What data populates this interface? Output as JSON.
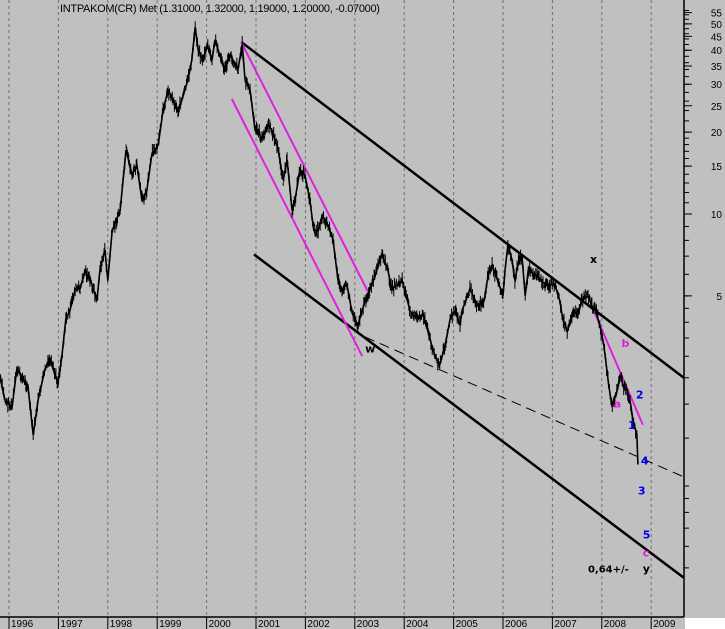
{
  "chart_data": {
    "type": "line",
    "title": "INTPAKOM(CR) Met (1.31000, 1.32000, 1.19000, 1.20000, -0.07000)",
    "y_scale": "log",
    "ylim": [
      0.4,
      58
    ],
    "xlim": [
      1995.82,
      2009.66
    ],
    "y_ticks": [
      5,
      10,
      15,
      20,
      25,
      30,
      35,
      40,
      45,
      50,
      55
    ],
    "x_ticks": [
      "1996",
      "1997",
      "1998",
      "1999",
      "2000",
      "2001",
      "2002",
      "2003",
      "2004",
      "2005",
      "2006",
      "2007",
      "2008",
      "2009"
    ],
    "grid": "vertical dashed at year starts",
    "price_series": [
      [
        1995.82,
        2.5
      ],
      [
        1995.92,
        2.07
      ],
      [
        1996.06,
        1.94
      ],
      [
        1996.16,
        2.7
      ],
      [
        1996.26,
        2.5
      ],
      [
        1996.38,
        2.35
      ],
      [
        1996.49,
        1.54
      ],
      [
        1996.59,
        2.07
      ],
      [
        1996.73,
        2.7
      ],
      [
        1996.83,
        2.9
      ],
      [
        1996.99,
        2.4
      ],
      [
        1997.07,
        3.0
      ],
      [
        1997.15,
        4.1
      ],
      [
        1997.23,
        4.4
      ],
      [
        1997.34,
        5.3
      ],
      [
        1997.44,
        5.3
      ],
      [
        1997.54,
        6.2
      ],
      [
        1997.68,
        5.5
      ],
      [
        1997.78,
        4.8
      ],
      [
        1997.84,
        6.2
      ],
      [
        1997.94,
        7.4
      ],
      [
        1998.0,
        5.7
      ],
      [
        1998.09,
        8.7
      ],
      [
        1998.25,
        10.3
      ],
      [
        1998.37,
        17.2
      ],
      [
        1998.49,
        13.9
      ],
      [
        1998.59,
        15.1
      ],
      [
        1998.69,
        11.3
      ],
      [
        1998.79,
        12.2
      ],
      [
        1998.89,
        16.5
      ],
      [
        1999.02,
        17.9
      ],
      [
        1999.12,
        24.1
      ],
      [
        1999.22,
        28.6
      ],
      [
        1999.32,
        26.2
      ],
      [
        1999.42,
        24.1
      ],
      [
        1999.5,
        26.2
      ],
      [
        1999.62,
        31.1
      ],
      [
        1999.7,
        36.8
      ],
      [
        1999.77,
        48.7
      ],
      [
        1999.83,
        40.1
      ],
      [
        1999.93,
        36.8
      ],
      [
        2000.01,
        41.8
      ],
      [
        2000.11,
        36.8
      ],
      [
        2000.17,
        43.6
      ],
      [
        2000.27,
        38.4
      ],
      [
        2000.37,
        33.8
      ],
      [
        2000.47,
        38.4
      ],
      [
        2000.64,
        34.4
      ],
      [
        2000.72,
        41.8
      ],
      [
        2000.78,
        31.1
      ],
      [
        2000.88,
        28.6
      ],
      [
        2000.98,
        20.4
      ],
      [
        2001.04,
        20.4
      ],
      [
        2001.12,
        18.7
      ],
      [
        2001.24,
        21.2
      ],
      [
        2001.32,
        20.4
      ],
      [
        2001.45,
        17.2
      ],
      [
        2001.55,
        13.3
      ],
      [
        2001.63,
        15.8
      ],
      [
        2001.73,
        10.3
      ],
      [
        2001.79,
        11.3
      ],
      [
        2001.89,
        14.5
      ],
      [
        2001.99,
        13.9
      ],
      [
        2002.09,
        11.3
      ],
      [
        2002.17,
        8.7
      ],
      [
        2002.26,
        8.7
      ],
      [
        2002.34,
        9.9
      ],
      [
        2002.46,
        9.1
      ],
      [
        2002.56,
        8.0
      ],
      [
        2002.66,
        5.7
      ],
      [
        2002.74,
        5.3
      ],
      [
        2002.84,
        5.5
      ],
      [
        2002.94,
        4.4
      ],
      [
        2003.06,
        3.9
      ],
      [
        2003.21,
        4.8
      ],
      [
        2003.35,
        5.5
      ],
      [
        2003.55,
        7.1
      ],
      [
        2003.67,
        6.2
      ],
      [
        2003.75,
        5.3
      ],
      [
        2003.96,
        5.7
      ],
      [
        2004.12,
        4.4
      ],
      [
        2004.28,
        4.1
      ],
      [
        2004.38,
        4.3
      ],
      [
        2004.62,
        3.0
      ],
      [
        2004.72,
        2.8
      ],
      [
        2004.83,
        3.3
      ],
      [
        2004.93,
        4.1
      ],
      [
        2005.03,
        4.4
      ],
      [
        2005.13,
        3.9
      ],
      [
        2005.17,
        4.4
      ],
      [
        2005.33,
        5.3
      ],
      [
        2005.49,
        4.6
      ],
      [
        2005.62,
        4.8
      ],
      [
        2005.7,
        6.0
      ],
      [
        2005.78,
        6.5
      ],
      [
        2006.0,
        5.0
      ],
      [
        2006.04,
        6.2
      ],
      [
        2006.1,
        7.7
      ],
      [
        2006.18,
        6.8
      ],
      [
        2006.24,
        5.7
      ],
      [
        2006.3,
        6.5
      ],
      [
        2006.38,
        7.1
      ],
      [
        2006.45,
        5.0
      ],
      [
        2006.51,
        6.2
      ],
      [
        2006.65,
        6.0
      ],
      [
        2006.85,
        5.5
      ],
      [
        2007.05,
        5.5
      ],
      [
        2007.15,
        4.8
      ],
      [
        2007.21,
        4.1
      ],
      [
        2007.3,
        3.7
      ],
      [
        2007.42,
        4.3
      ],
      [
        2007.52,
        4.4
      ],
      [
        2007.6,
        4.8
      ],
      [
        2007.72,
        5.0
      ],
      [
        2007.8,
        4.6
      ],
      [
        2007.88,
        4.4
      ],
      [
        2007.96,
        3.9
      ],
      [
        2008.04,
        3.3
      ],
      [
        2008.14,
        2.35
      ],
      [
        2008.2,
        1.99
      ],
      [
        2008.29,
        2.16
      ],
      [
        2008.37,
        2.56
      ],
      [
        2008.43,
        2.35
      ],
      [
        2008.51,
        2.25
      ],
      [
        2008.57,
        2.07
      ],
      [
        2008.63,
        1.75
      ],
      [
        2008.71,
        1.54
      ],
      [
        2008.73,
        1.2
      ]
    ],
    "trend_lines": [
      {
        "name": "upper-channel",
        "color": "#000000",
        "style": "solid",
        "from": [
          2000.7,
          42.9
        ],
        "to": [
          2009.66,
          2.5
        ]
      },
      {
        "name": "lower-channel",
        "color": "#000000",
        "style": "solid",
        "from": [
          2000.96,
          7.1
        ],
        "to": [
          2009.66,
          0.46
        ]
      },
      {
        "name": "magenta-upper",
        "color": "#e020e0",
        "style": "solid",
        "from": [
          2000.7,
          42.9
        ],
        "to": [
          2003.31,
          5.0
        ]
      },
      {
        "name": "magenta-lower",
        "color": "#e020e0",
        "style": "solid",
        "from": [
          2000.51,
          26.5
        ],
        "to": [
          2003.15,
          3.0
        ]
      },
      {
        "name": "magenta-short",
        "color": "#e020e0",
        "style": "solid",
        "from": [
          2007.84,
          4.4
        ],
        "to": [
          2008.83,
          1.68
        ]
      },
      {
        "name": "dashed-support",
        "color": "#000000",
        "style": "dashed",
        "from": [
          2003.21,
          3.53
        ],
        "to": [
          2009.66,
          1.08
        ]
      }
    ],
    "annotations": [
      {
        "text": "w",
        "at": [
          2003.21,
          3.1
        ],
        "color": "#000000"
      },
      {
        "text": "x",
        "at": [
          2007.76,
          6.6
        ],
        "color": "#000000"
      },
      {
        "text": "b",
        "at": [
          2008.4,
          3.25
        ],
        "color": "#e020e0"
      },
      {
        "text": "a",
        "at": [
          2008.24,
          1.94
        ],
        "color": "#e020e0"
      },
      {
        "text": "2",
        "at": [
          2008.69,
          2.1
        ],
        "color": "#0000ee"
      },
      {
        "text": "1",
        "at": [
          2008.53,
          1.62
        ],
        "color": "#0000ee"
      },
      {
        "text": "4",
        "at": [
          2008.79,
          1.2
        ],
        "color": "#0000ee"
      },
      {
        "text": "3",
        "at": [
          2008.73,
          0.93
        ],
        "color": "#0000ee"
      },
      {
        "text": "5",
        "at": [
          2008.83,
          0.64
        ],
        "color": "#0000ee"
      },
      {
        "text": "c",
        "at": [
          2008.83,
          0.55
        ],
        "color": "#e020e0"
      },
      {
        "text": "y",
        "at": [
          2008.83,
          0.48
        ],
        "color": "#000000"
      },
      {
        "text": "0,64+/-",
        "at": [
          2007.72,
          0.48
        ],
        "color": "#000000",
        "bold": true
      }
    ]
  },
  "colors": {
    "background": "#c0c0c0",
    "price": "#000000",
    "magenta": "#e020e0",
    "blue": "#0000ee"
  }
}
